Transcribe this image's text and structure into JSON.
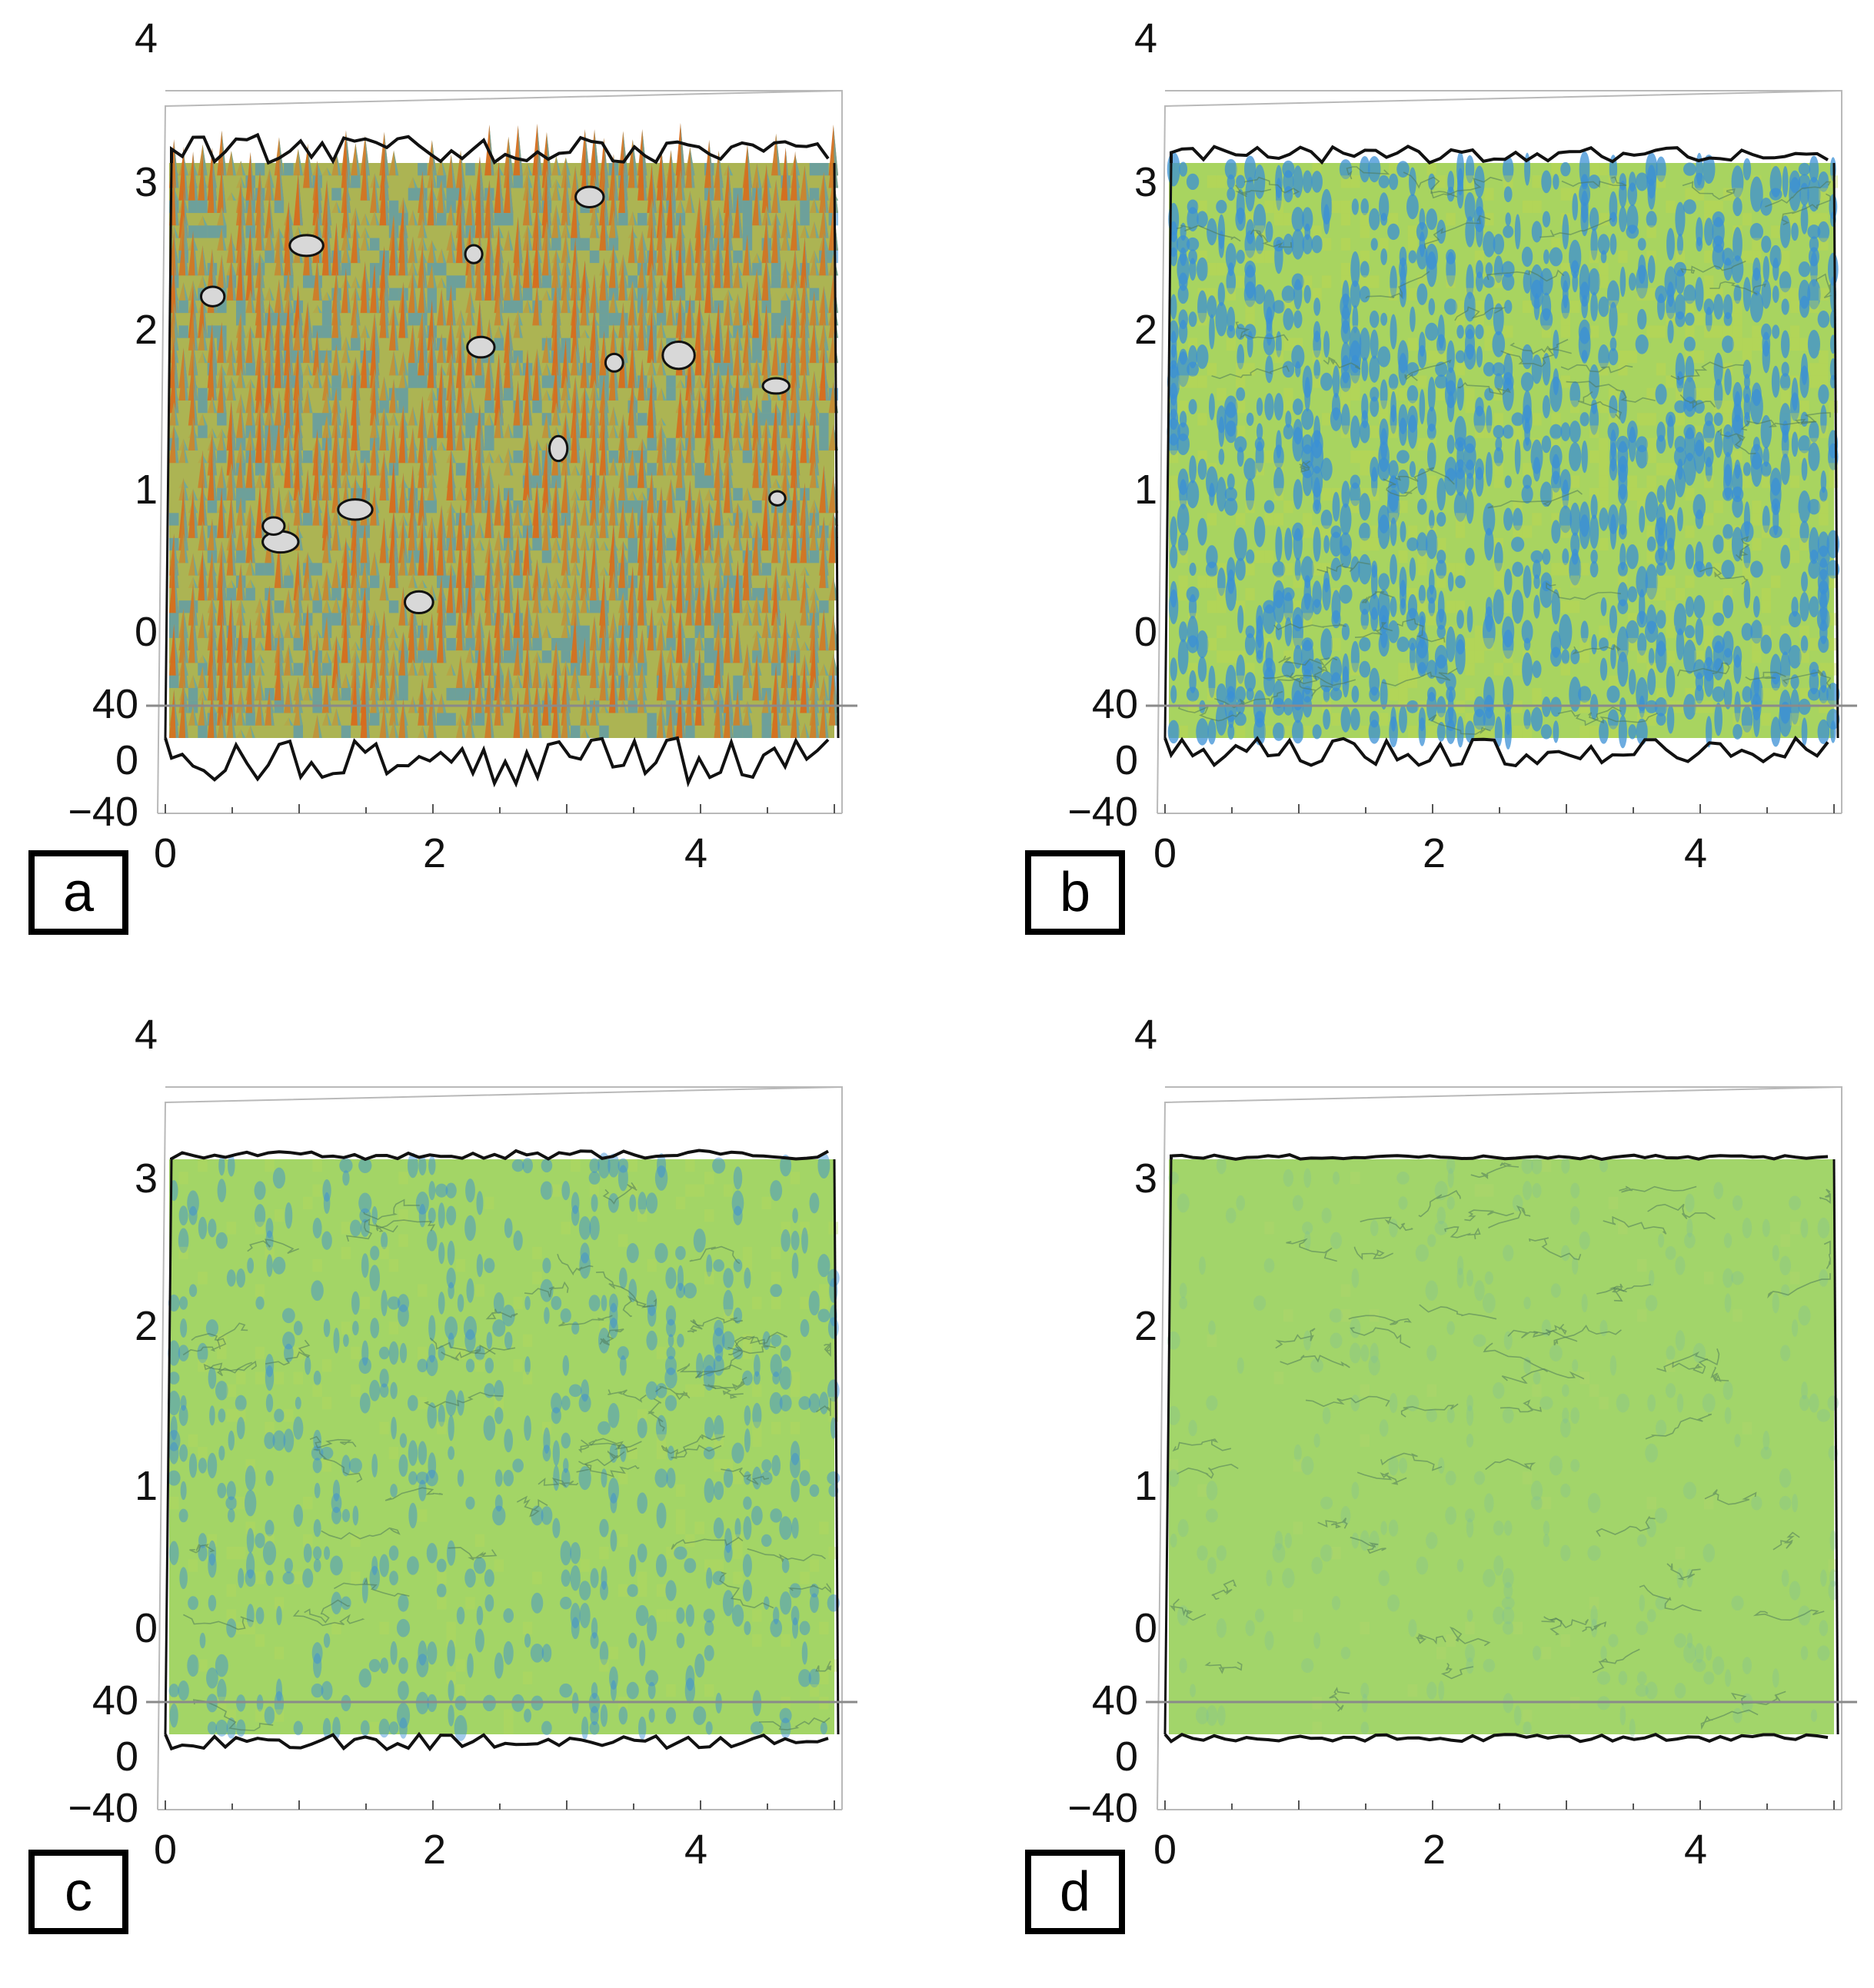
{
  "figure": {
    "panels": [
      {
        "label": "a",
        "relief": 1.0,
        "hot": 1.0,
        "caps": true
      },
      {
        "label": "b",
        "relief": 0.55,
        "hot": 0.15,
        "caps": false
      },
      {
        "label": "c",
        "relief": 0.25,
        "hot": 0.05,
        "caps": false
      },
      {
        "label": "d",
        "relief": 0.07,
        "hot": 0.0,
        "caps": false
      }
    ]
  },
  "chart_data": [
    {
      "type": "surface",
      "panel": "a",
      "x_ticks": [
        "0",
        "2",
        "4"
      ],
      "y_ticks": [
        "0",
        "1",
        "2",
        "3",
        "4"
      ],
      "z_ticks": [
        "−40",
        "0",
        "40"
      ],
      "xlim": [
        0,
        5
      ],
      "ylim": [
        0,
        4
      ],
      "zlim": [
        -40,
        40
      ],
      "colors": {
        "low": "#3a8fd6",
        "mid": "#9ad36a",
        "high": "#d76b1c",
        "cap": "#d8d8d8"
      }
    },
    {
      "type": "surface",
      "panel": "b",
      "x_ticks": [
        "0",
        "2",
        "4"
      ],
      "y_ticks": [
        "0",
        "1",
        "2",
        "3",
        "4"
      ],
      "z_ticks": [
        "−40",
        "0",
        "40"
      ],
      "xlim": [
        0,
        5
      ],
      "ylim": [
        0,
        4
      ],
      "zlim": [
        -40,
        40
      ],
      "colors": {
        "low": "#3a8fd6",
        "mid": "#9ad36a",
        "high": "#c7d64a"
      }
    },
    {
      "type": "surface",
      "panel": "c",
      "x_ticks": [
        "0",
        "2",
        "4"
      ],
      "y_ticks": [
        "0",
        "1",
        "2",
        "3",
        "4"
      ],
      "z_ticks": [
        "−40",
        "0",
        "40"
      ],
      "xlim": [
        0,
        5
      ],
      "ylim": [
        0,
        4
      ],
      "zlim": [
        -40,
        40
      ],
      "colors": {
        "low": "#3a8fd6",
        "mid": "#9ad36a",
        "high": "#b8d95c"
      }
    },
    {
      "type": "surface",
      "panel": "d",
      "x_ticks": [
        "0",
        "2",
        "4"
      ],
      "y_ticks": [
        "0",
        "1",
        "2",
        "3",
        "4"
      ],
      "z_ticks": [
        "−40",
        "0",
        "40"
      ],
      "xlim": [
        0,
        5
      ],
      "ylim": [
        0,
        4
      ],
      "zlim": [
        -40,
        40
      ],
      "colors": {
        "low": "#7fbf9a",
        "mid": "#9ad36a",
        "high": "#b4d86a"
      }
    }
  ]
}
